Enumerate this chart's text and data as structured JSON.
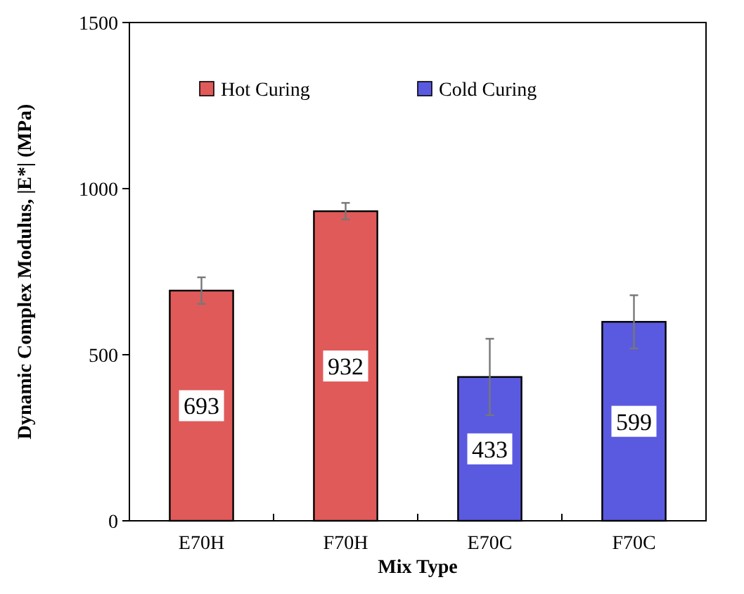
{
  "chart_data": {
    "type": "bar",
    "xlabel": "Mix Type",
    "ylabel": "Dynamic Complex Modulus, |E*| (MPa)",
    "categories": [
      "E70H",
      "F70H",
      "E70C",
      "F70C"
    ],
    "series": [
      {
        "name": "Hot Curing",
        "color": "#e05a5a",
        "values": [
          693,
          932,
          null,
          null
        ],
        "errors": [
          40,
          25,
          null,
          null
        ]
      },
      {
        "name": "Cold Curing",
        "color": "#5a5ae0",
        "values": [
          null,
          null,
          433,
          599
        ],
        "errors": [
          null,
          null,
          115,
          80
        ]
      }
    ],
    "ylim": [
      0,
      1500
    ],
    "yticks": [
      0,
      500,
      1000,
      1500
    ],
    "grid": false,
    "legend": "top",
    "data_labels": true
  }
}
